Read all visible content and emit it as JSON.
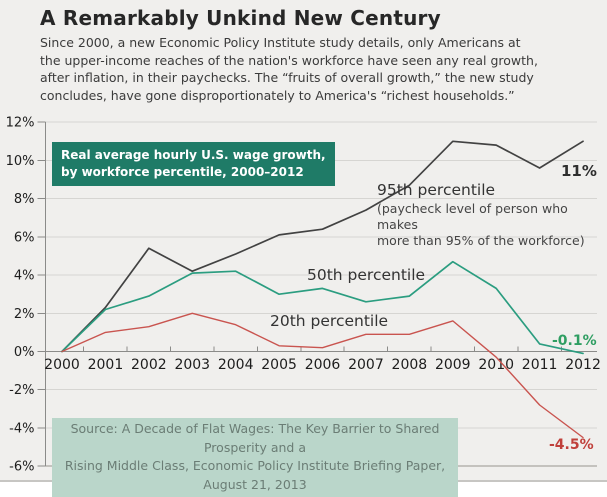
{
  "header": {
    "title": "A Remarkably Unkind New Century",
    "subtitle": "Since 2000, a new Economic Policy Institute study details, only Americans at\nthe upper-income reaches of the nation's workforce have seen any real growth,\nafter inflation, in their paychecks. The “fruits of overall growth,” the new study\nconcludes, have gone disproportionately to America's “richest households.”"
  },
  "legend": {
    "text": "Real average hourly U.S. wage growth,\nby workforce percentile, 2000–2012",
    "bg_color": "#1f7b67"
  },
  "chart_data": {
    "type": "line",
    "x": [
      2000,
      2001,
      2002,
      2003,
      2004,
      2005,
      2006,
      2007,
      2008,
      2009,
      2010,
      2011,
      2012
    ],
    "series": [
      {
        "name": "95th percentile",
        "color": "#424242",
        "values": [
          0,
          2.3,
          5.4,
          4.2,
          5.1,
          6.1,
          6.4,
          7.4,
          8.7,
          11.0,
          10.8,
          9.6,
          11.0
        ],
        "end_label": "11%"
      },
      {
        "name": "50th percentile",
        "color": "#2b9d80",
        "values": [
          0,
          2.2,
          2.9,
          4.1,
          4.2,
          3.0,
          3.3,
          2.6,
          2.9,
          4.7,
          3.3,
          0.4,
          -0.1
        ],
        "end_label": "-0.1%"
      },
      {
        "name": "20th percentile",
        "color": "#c9544f",
        "values": [
          0,
          1.0,
          1.3,
          2.0,
          1.4,
          0.3,
          0.2,
          0.9,
          0.9,
          1.6,
          -0.3,
          -2.8,
          -4.5
        ],
        "end_label": "-4.5%"
      }
    ],
    "ylim": [
      -6,
      12
    ],
    "ytick_step": 2,
    "ytick_suffix": "%",
    "grid": true,
    "legend_position": "inside-top-left",
    "title": "Real average hourly U.S. wage growth, by workforce percentile, 2000–2012",
    "xlabel": "",
    "ylabel": ""
  },
  "annotations": {
    "s95_label": "95th percentile",
    "s95_note": "(paycheck level of person who makes\nmore than 95% of the workforce)",
    "s50_label": "50th percentile",
    "s20_label": "20th percentile",
    "end_95": "11%",
    "end_50": "-0.1%",
    "end_20": "-4.5%"
  },
  "source": {
    "text": "Source: A Decade of Flat Wages: The Key Barrier to Shared Prosperity and a\nRising Middle Class, Economic Policy Institute Briefing Paper, August 21, 2013"
  },
  "colors": {
    "background": "#f0efed",
    "gridline": "#d6d5d2",
    "axis": "#8b8b89",
    "line_95th": "#424242",
    "line_50th": "#2b9d80",
    "line_20th": "#c9544f",
    "legend_bg": "#1f7b67",
    "source_bg": "#bad6ca"
  }
}
